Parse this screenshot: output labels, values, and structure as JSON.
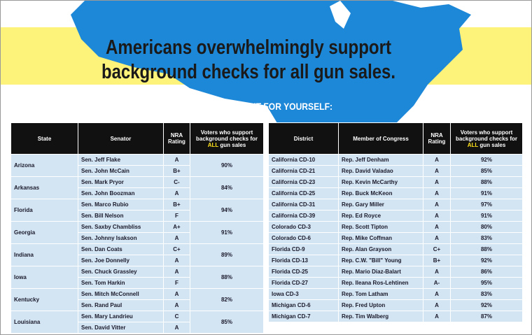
{
  "title_lines": [
    "Americans overwhelmingly support",
    "background checks for all gun sales."
  ],
  "subtitle": "CHECK IT OUT FOR YOURSELF:",
  "left_table": {
    "headers": [
      "State",
      "Senator",
      "NRA Rating"
    ],
    "support_header": {
      "before": "Voters who support background checks for",
      "highlight": "ALL",
      "after": "gun sales"
    },
    "rows": [
      {
        "state": "Arizona",
        "support": "90%",
        "senators": [
          {
            "name": "Sen. Jeff Flake",
            "rating": "A"
          },
          {
            "name": "Sen. John McCain",
            "rating": "B+"
          }
        ]
      },
      {
        "state": "Arkansas",
        "support": "84%",
        "senators": [
          {
            "name": "Sen. Mark Pryor",
            "rating": "C-"
          },
          {
            "name": "Sen. John Boozman",
            "rating": "A"
          }
        ]
      },
      {
        "state": "Florida",
        "support": "94%",
        "senators": [
          {
            "name": "Sen. Marco Rubio",
            "rating": "B+"
          },
          {
            "name": "Sen. Bill Nelson",
            "rating": "F"
          }
        ]
      },
      {
        "state": "Georgia",
        "support": "91%",
        "senators": [
          {
            "name": "Sen. Saxby Chambliss",
            "rating": "A+"
          },
          {
            "name": "Sen. Johnny Isakson",
            "rating": "A"
          }
        ]
      },
      {
        "state": "Indiana",
        "support": "89%",
        "senators": [
          {
            "name": "Sen. Dan Coats",
            "rating": "C+"
          },
          {
            "name": "Sen. Joe Donnelly",
            "rating": "A"
          }
        ]
      },
      {
        "state": "Iowa",
        "support": "88%",
        "senators": [
          {
            "name": "Sen. Chuck Grassley",
            "rating": "A"
          },
          {
            "name": "Sen. Tom Harkin",
            "rating": "F"
          }
        ]
      },
      {
        "state": "Kentucky",
        "support": "82%",
        "senators": [
          {
            "name": "Sen. Mitch McConnell",
            "rating": "A"
          },
          {
            "name": "Sen. Rand Paul",
            "rating": "A"
          }
        ]
      },
      {
        "state": "Louisiana",
        "support": "85%",
        "senators": [
          {
            "name": "Sen. Mary Landrieu",
            "rating": "C"
          },
          {
            "name": "Sen. David Vitter",
            "rating": "A"
          }
        ]
      }
    ]
  },
  "right_table": {
    "headers": [
      "District",
      "Member of Congress",
      "NRA Rating"
    ],
    "support_header": {
      "before": "Voters who support background checks for",
      "highlight": "ALL",
      "after": "gun sales"
    },
    "rows": [
      [
        "California CD-10",
        "Rep. Jeff Denham",
        "A",
        "92%"
      ],
      [
        "California CD-21",
        "Rep. David Valadao",
        "A",
        "85%"
      ],
      [
        "California CD-23",
        "Rep. Kevin McCarthy",
        "A",
        "88%"
      ],
      [
        "California CD-25",
        "Rep. Buck McKeon",
        "A",
        "91%"
      ],
      [
        "California CD-31",
        "Rep. Gary Miller",
        "A",
        "97%"
      ],
      [
        "California CD-39",
        "Rep. Ed Royce",
        "A",
        "91%"
      ],
      [
        "Colorado CD-3",
        "Rep. Scott Tipton",
        "A",
        "80%"
      ],
      [
        "Colorado CD-6",
        "Rep. Mike Coffman",
        "A",
        "83%"
      ],
      [
        "Florida CD-9",
        "Rep. Alan Grayson",
        "C+",
        "88%"
      ],
      [
        "Florida CD-13",
        "Rep. C.W. \"Bill\" Young",
        "B+",
        "92%"
      ],
      [
        "Florida CD-25",
        "Rep. Mario Diaz-Balart",
        "A",
        "86%"
      ],
      [
        "Florida CD-27",
        "Rep. Ileana Ros-Lehtinen",
        "A-",
        "95%"
      ],
      [
        "Iowa CD-3",
        "Rep. Tom Latham",
        "A",
        "83%"
      ],
      [
        "Michigan CD-6",
        "Rep. Fred Upton",
        "A",
        "92%"
      ],
      [
        "Michigan CD-7",
        "Rep. Tim Walberg",
        "A",
        "87%"
      ]
    ]
  }
}
